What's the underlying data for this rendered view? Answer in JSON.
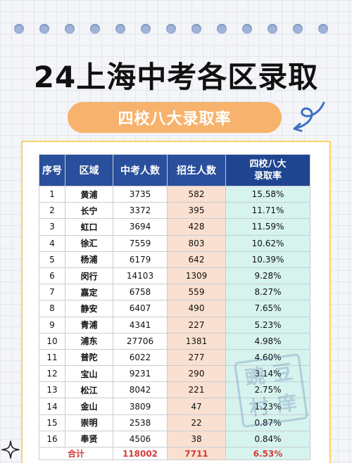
{
  "header": {
    "title": "24上海中考各区录取",
    "subtitle": "四校八大录取率"
  },
  "colors": {
    "header_bg": "#2a4f9c",
    "enroll_bg": "#fae0d0",
    "rate_bg": "#d6f3ee",
    "pill_bg": "#f7b36d",
    "total_text": "#d63a3a",
    "frame_border": "#f6d36c"
  },
  "icons": [
    "swirl-arrow-icon",
    "sparkle-icon"
  ],
  "table": {
    "headers": [
      "序号",
      "区域",
      "中考人数",
      "招生人数",
      "四校八大\n录取率"
    ],
    "rows": [
      [
        "1",
        "黄浦",
        "3735",
        "582",
        "15.58%"
      ],
      [
        "2",
        "长宁",
        "3372",
        "395",
        "11.71%"
      ],
      [
        "3",
        "虹口",
        "3694",
        "428",
        "11.59%"
      ],
      [
        "4",
        "徐汇",
        "7559",
        "803",
        "10.62%"
      ],
      [
        "5",
        "杨浦",
        "6179",
        "642",
        "10.39%"
      ],
      [
        "6",
        "闵行",
        "14103",
        "1309",
        "9.28%"
      ],
      [
        "7",
        "嘉定",
        "6758",
        "559",
        "8.27%"
      ],
      [
        "8",
        "静安",
        "6407",
        "490",
        "7.65%"
      ],
      [
        "9",
        "青浦",
        "4341",
        "227",
        "5.23%"
      ],
      [
        "10",
        "浦东",
        "27706",
        "1381",
        "4.98%"
      ],
      [
        "11",
        "普陀",
        "6022",
        "277",
        "4.60%"
      ],
      [
        "12",
        "宝山",
        "9231",
        "290",
        "3.14%"
      ],
      [
        "13",
        "松江",
        "8042",
        "221",
        "2.75%"
      ],
      [
        "14",
        "金山",
        "3809",
        "47",
        "1.23%"
      ],
      [
        "15",
        "崇明",
        "2538",
        "22",
        "0.87%"
      ],
      [
        "16",
        "奉贤",
        "4506",
        "38",
        "0.84%"
      ]
    ],
    "total": {
      "label": "合计",
      "exam_count": "118002",
      "enroll_count": "7711",
      "rate": "6.53%"
    }
  },
  "stamp_text": [
    "豌",
    "豆",
    "村",
    "庠"
  ]
}
